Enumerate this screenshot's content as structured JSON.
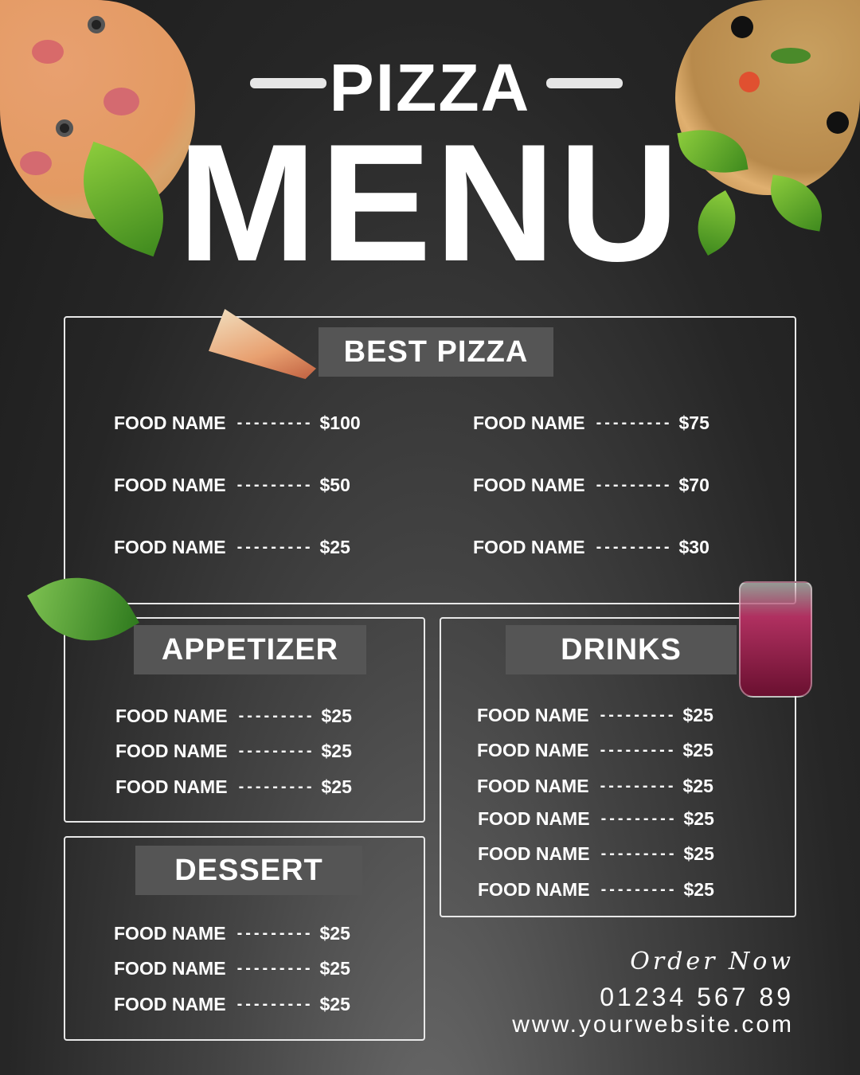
{
  "title": {
    "top": "PIZZA",
    "main": "MENU"
  },
  "sections": {
    "best_pizza": {
      "heading": "BEST PIZZA",
      "items": [
        {
          "name": "FOOD NAME",
          "price": "$100"
        },
        {
          "name": "FOOD NAME",
          "price": "$50"
        },
        {
          "name": "FOOD NAME",
          "price": "$25"
        },
        {
          "name": "FOOD NAME",
          "price": "$75"
        },
        {
          "name": "FOOD NAME",
          "price": "$70"
        },
        {
          "name": "FOOD NAME",
          "price": "$30"
        }
      ]
    },
    "appetizer": {
      "heading": "APPETIZER",
      "items": [
        {
          "name": "FOOD NAME",
          "price": "$25"
        },
        {
          "name": "FOOD NAME",
          "price": "$25"
        },
        {
          "name": "FOOD NAME",
          "price": "$25"
        }
      ]
    },
    "drinks": {
      "heading": "DRINKS",
      "items": [
        {
          "name": "FOOD NAME",
          "price": "$25"
        },
        {
          "name": "FOOD NAME",
          "price": "$25"
        },
        {
          "name": "FOOD NAME",
          "price": "$25"
        },
        {
          "name": "FOOD NAME",
          "price": "$25"
        },
        {
          "name": "FOOD NAME",
          "price": "$25"
        },
        {
          "name": "FOOD NAME",
          "price": "$25"
        }
      ]
    },
    "dessert": {
      "heading": "DESSERT",
      "items": [
        {
          "name": "FOOD NAME",
          "price": "$25"
        },
        {
          "name": "FOOD NAME",
          "price": "$25"
        },
        {
          "name": "FOOD NAME",
          "price": "$25"
        }
      ]
    }
  },
  "dash": "---------",
  "footer": {
    "order": "Order Now",
    "phone": "01234 567 89",
    "website": "www.yourwebsite.com"
  },
  "colors": {
    "banner": "#555555",
    "border": "#e8e8e8"
  }
}
